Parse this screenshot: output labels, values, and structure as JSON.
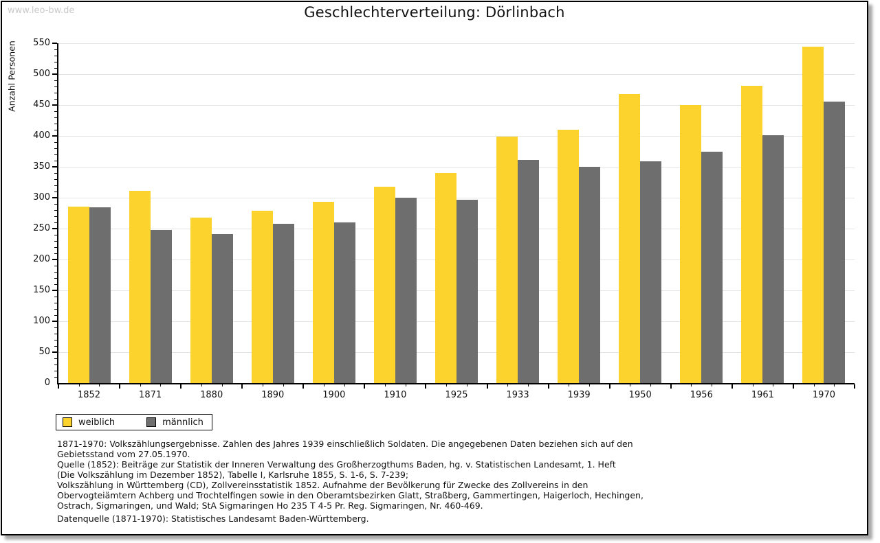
{
  "watermark": "www.leo-bw.de",
  "title": "Geschlechterverteilung: Dörlinbach",
  "chart_data": {
    "type": "bar",
    "title": "Geschlechterverteilung: Dörlinbach",
    "xlabel": "",
    "ylabel": "Anzahl Personen",
    "categories": [
      "1852",
      "1871",
      "1880",
      "1890",
      "1900",
      "1910",
      "1925",
      "1933",
      "1939",
      "1950",
      "1956",
      "1961",
      "1970"
    ],
    "series": [
      {
        "name": "weiblich",
        "color": "#FCD32D",
        "values": [
          286,
          311,
          268,
          279,
          293,
          318,
          340,
          399,
          410,
          468,
          450,
          481,
          545
        ]
      },
      {
        "name": "männlich",
        "color": "#6E6E6E",
        "values": [
          284,
          248,
          241,
          258,
          260,
          300,
          297,
          361,
          350,
          359,
          375,
          401,
          456
        ]
      }
    ],
    "ylim": [
      0,
      550
    ],
    "ytick_major_step": 50,
    "ytick_minor_step": 10,
    "grid": true,
    "legend_position": "bottom-left"
  },
  "legend": {
    "items": [
      {
        "label": "weiblich",
        "color": "#FCD32D"
      },
      {
        "label": "männlich",
        "color": "#6E6E6E"
      }
    ]
  },
  "footnotes": [
    "1871-1970: Volkszählungsergebnisse. Zahlen des Jahres 1939 einschließlich Soldaten. Die angegebenen Daten beziehen sich auf den",
    "Gebietsstand vom 27.05.1970.",
    "Quelle (1852): Beiträge zur Statistik der Inneren Verwaltung des Großherzogthums Baden, hg. v. Statistischen Landesamt, 1. Heft",
    "(Die Volkszählung im Dezember 1852), Tabelle I, Karlsruhe 1855, S. 1-6, S. 7-239;",
    "Volkszählung in Württemberg (CD), Zollvereinsstatistik 1852. Aufnahme der Bevölkerung für Zwecke des Zollvereins in den",
    "Obervogteiämtern Achberg und Trochtelfingen sowie in den Oberamtsbezirken Glatt, Straßberg, Gammertingen, Haigerloch, Hechingen,",
    "Ostrach, Sigmaringen, und Wald; StA Sigmaringen Ho 235 T 4-5 Pr. Reg. Sigmaringen, Nr. 460-469."
  ],
  "datasource": "Datenquelle (1871-1970): Statistisches Landesamt Baden-Württemberg.",
  "colors": {
    "female_bar": "#FCD32D",
    "male_bar": "#6E6E6E",
    "gridline": "#E4E4E4",
    "axis": "#000000",
    "watermark": "#C9C9C9"
  }
}
